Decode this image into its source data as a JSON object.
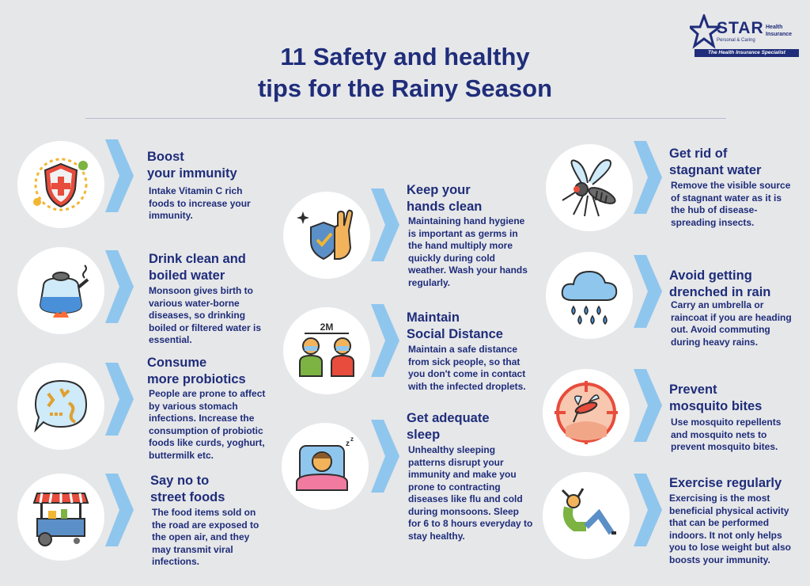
{
  "title": {
    "line1": "11 Safety and healthy",
    "line2": "tips for the Rainy Season"
  },
  "logo": {
    "brand": "STAR",
    "tagline": "Personal & Caring",
    "side1": "Health",
    "side2": "Insurance",
    "strip": "The Health Insurance Specialist"
  },
  "colors": {
    "navy": "#1f2d7a",
    "chevron": "#8fc6ee",
    "circle": "#ffffff",
    "background": "#e6e7e9"
  },
  "tips": [
    {
      "icon": "immunity-shield-icon",
      "heading1": "Boost",
      "heading2": "your immunity",
      "body": "Intake Vitamin C rich foods to increase your immunity."
    },
    {
      "icon": "boiling-kettle-icon",
      "heading1": "Drink clean and",
      "heading2": "boiled water",
      "body": "Monsoon gives birth to various water-borne diseases, so drinking boiled or filtered water is essential."
    },
    {
      "icon": "probiotic-bacteria-icon",
      "heading1": "Consume",
      "heading2": "more probiotics",
      "body": "People are prone to affect by various stomach infections. Increase the consumption of probiotic foods like curds, yoghurt, buttermilk etc."
    },
    {
      "icon": "street-food-cart-icon",
      "heading1": "Say no to",
      "heading2": "street foods",
      "body": "The food items sold on the road are exposed to the open air, and they may transmit viral infections."
    },
    {
      "icon": "clean-hand-icon",
      "heading1": "Keep your",
      "heading2": "hands clean",
      "body": "Maintaining hand hygiene is important as germs in the hand multiply more quickly during cold weather. Wash your hands regularly."
    },
    {
      "icon": "social-distance-icon",
      "heading1": "Maintain",
      "heading2": "Social Distance",
      "distance_label": "2M",
      "body": "Maintain a safe distance from sick people, so that you don't come in contact with the infected droplets."
    },
    {
      "icon": "sleeping-person-icon",
      "heading1": "Get adequate",
      "heading2": "sleep",
      "body": "Unhealthy sleeping patterns disrupt your immunity and make you prone to contracting diseases like flu and cold during monsoons. Sleep for 6 to 8 hours everyday to stay healthy."
    },
    {
      "icon": "mosquito-icon",
      "heading1": "Get rid of",
      "heading2": "stagnant water",
      "body": "Remove the visible source of stagnant water as it is the hub of disease-spreading insects."
    },
    {
      "icon": "rain-cloud-icon",
      "heading1": "Avoid getting",
      "heading2": "drenched in rain",
      "body": "Carry an umbrella or raincoat if you are heading out. Avoid commuting during heavy rains."
    },
    {
      "icon": "mosquito-bite-icon",
      "heading1": "Prevent",
      "heading2": "mosquito bites",
      "body": "Use mosquito repellents and mosquito nets to prevent mosquito bites."
    },
    {
      "icon": "exercise-situp-icon",
      "heading1": "Exercise regularly",
      "heading2": "",
      "body": "Exercising is the most beneficial physical activity that can be performed indoors. It not only helps you to lose weight but also boosts your immunity."
    }
  ]
}
